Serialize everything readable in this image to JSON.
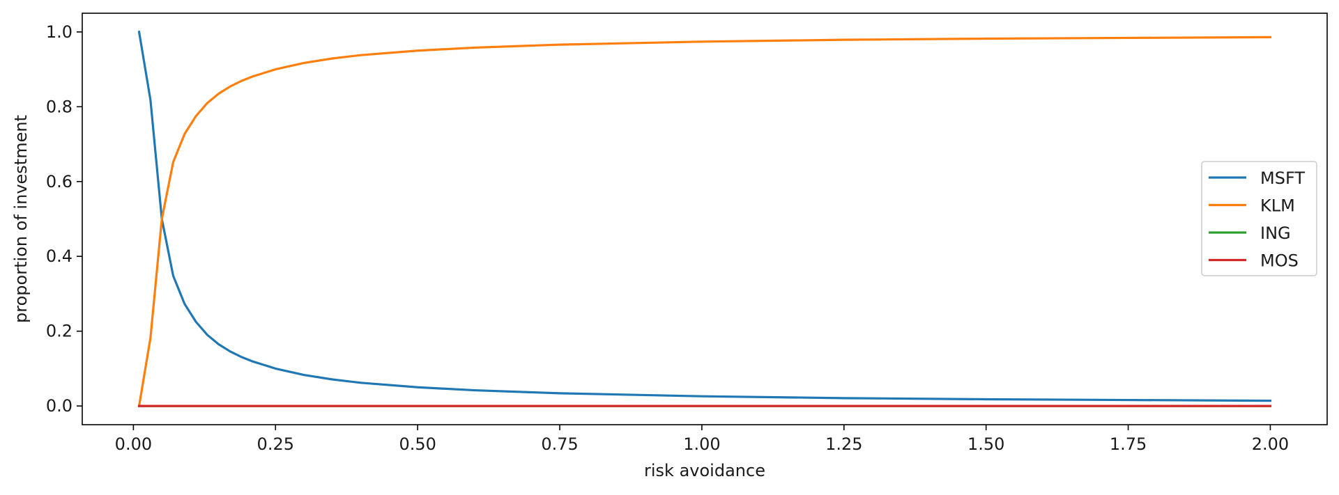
{
  "chart_data": {
    "type": "line",
    "title": "",
    "xlabel": "risk avoidance",
    "ylabel": "proportion of investment",
    "xlim": [
      -0.09,
      2.1
    ],
    "ylim": [
      -0.05,
      1.05
    ],
    "xticks": [
      0.0,
      0.25,
      0.5,
      0.75,
      1.0,
      1.25,
      1.5,
      1.75,
      2.0
    ],
    "xtick_labels": [
      "0.00",
      "0.25",
      "0.50",
      "0.75",
      "1.00",
      "1.25",
      "1.50",
      "1.75",
      "2.00"
    ],
    "yticks": [
      0.0,
      0.2,
      0.4,
      0.6,
      0.8,
      1.0
    ],
    "ytick_labels": [
      "0.0",
      "0.2",
      "0.4",
      "0.6",
      "0.8",
      "1.0"
    ],
    "grid": false,
    "legend_position": "center-right",
    "x": [
      0.01,
      0.03,
      0.05,
      0.07,
      0.09,
      0.11,
      0.13,
      0.15,
      0.17,
      0.19,
      0.21,
      0.25,
      0.3,
      0.35,
      0.4,
      0.5,
      0.6,
      0.75,
      1.0,
      1.25,
      1.5,
      1.75,
      2.0
    ],
    "series": [
      {
        "name": "MSFT",
        "color": "#1f77b4",
        "values": [
          1.0,
          0.818,
          0.5,
          0.348,
          0.273,
          0.225,
          0.19,
          0.165,
          0.146,
          0.131,
          0.119,
          0.1,
          0.083,
          0.071,
          0.062,
          0.05,
          0.042,
          0.034,
          0.026,
          0.021,
          0.018,
          0.016,
          0.014
        ]
      },
      {
        "name": "KLM",
        "color": "#ff7f0e",
        "values": [
          0.0,
          0.182,
          0.5,
          0.652,
          0.727,
          0.775,
          0.81,
          0.835,
          0.854,
          0.869,
          0.881,
          0.9,
          0.917,
          0.929,
          0.938,
          0.95,
          0.958,
          0.966,
          0.974,
          0.979,
          0.982,
          0.984,
          0.986
        ]
      },
      {
        "name": "ING",
        "color": "#2ca02c",
        "values": [
          0.0,
          0.0,
          0.0,
          0.0,
          0.0,
          0.0,
          0.0,
          0.0,
          0.0,
          0.0,
          0.0,
          0.0,
          0.0,
          0.0,
          0.0,
          0.0,
          0.0,
          0.0,
          0.0,
          0.0,
          0.0,
          0.0,
          0.0
        ]
      },
      {
        "name": "MOS",
        "color": "#d62728",
        "values": [
          0.0,
          0.0,
          0.0,
          0.0,
          0.0,
          0.0,
          0.0,
          0.0,
          0.0,
          0.0,
          0.0,
          0.0,
          0.0,
          0.0,
          0.0,
          0.0,
          0.0,
          0.0,
          0.0,
          0.0,
          0.0,
          0.0,
          0.0
        ]
      }
    ]
  }
}
